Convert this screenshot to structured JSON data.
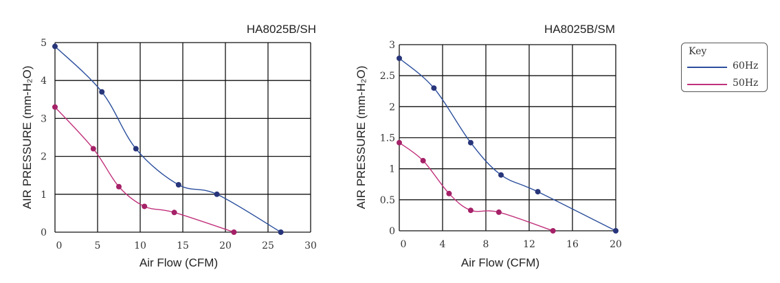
{
  "chart_data": [
    {
      "type": "line",
      "title": "HA8025B/SH",
      "xlabel": "Air Flow (CFM)",
      "ylabel": "AIR PRESSURE (mm-H₂O)",
      "xlim": [
        0,
        30
      ],
      "ylim": [
        0,
        5
      ],
      "xticks": [
        0,
        5,
        10,
        15,
        20,
        25,
        30
      ],
      "xtick_labels": [
        "0",
        "5",
        "10",
        "15",
        "20",
        "25",
        "30"
      ],
      "yticks": [
        0,
        1,
        2,
        3,
        4,
        5
      ],
      "ytick_labels": [
        "0",
        "1",
        "2",
        "3",
        "4",
        "5"
      ],
      "grid": true,
      "series": [
        {
          "name": "60Hz",
          "color": "#2a4e9c",
          "marker_color": "#27357a",
          "x": [
            0,
            5.5,
            9.5,
            14.5,
            19,
            26.5
          ],
          "y": [
            4.9,
            3.7,
            2.2,
            1.25,
            1.0,
            0
          ]
        },
        {
          "name": "50Hz",
          "color": "#c0317b",
          "marker_color": "#a52168",
          "x": [
            0,
            4.5,
            7.5,
            10.5,
            14,
            21
          ],
          "y": [
            3.3,
            2.2,
            1.2,
            0.68,
            0.52,
            0
          ]
        }
      ]
    },
    {
      "type": "line",
      "title": "HA8025B/SM",
      "xlabel": "Air Flow (CFM)",
      "ylabel": "AIR PRESSURE (mm-H₂O)",
      "xlim": [
        0,
        20
      ],
      "ylim": [
        0,
        3
      ],
      "xticks": [
        0,
        4,
        8,
        12,
        16,
        20
      ],
      "xtick_labels": [
        "0",
        "4",
        "8",
        "12",
        "16",
        "20"
      ],
      "yticks": [
        0,
        0.5,
        1,
        1.5,
        2,
        2.5,
        3
      ],
      "ytick_labels": [
        "0",
        "0.5",
        "1",
        "1.5",
        "2",
        "2.5",
        "3"
      ],
      "grid": true,
      "series": [
        {
          "name": "60Hz",
          "color": "#2a4e9c",
          "marker_color": "#27357a",
          "x": [
            0,
            3.2,
            6.6,
            9.4,
            12.8,
            20
          ],
          "y": [
            2.78,
            2.3,
            1.42,
            0.9,
            0.63,
            0
          ]
        },
        {
          "name": "50Hz",
          "color": "#c0317b",
          "marker_color": "#a52168",
          "x": [
            0,
            2.2,
            4.6,
            6.6,
            9.2,
            14.2
          ],
          "y": [
            1.42,
            1.13,
            0.6,
            0.33,
            0.3,
            0
          ]
        }
      ]
    }
  ],
  "legend": {
    "title": "Key",
    "items": [
      {
        "label": "60Hz",
        "color": "#2a4e9c"
      },
      {
        "label": "50Hz",
        "color": "#c0317b"
      }
    ]
  }
}
